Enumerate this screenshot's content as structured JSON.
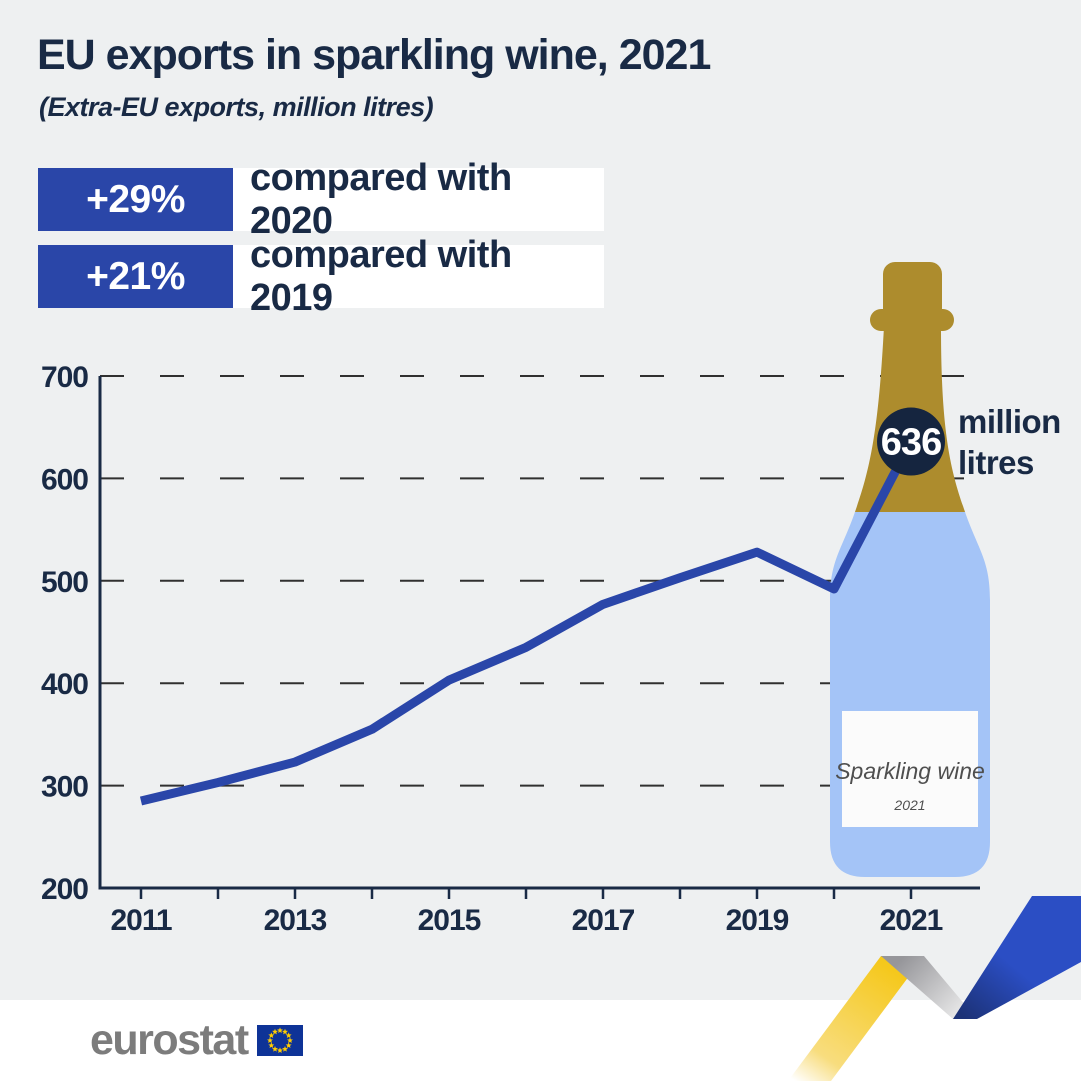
{
  "header": {
    "title": "EU exports in sparkling wine, 2021",
    "subtitle": "(Extra-EU exports, million litres)"
  },
  "badges": [
    {
      "value": "+29%",
      "label": "compared with 2020"
    },
    {
      "value": "+21%",
      "label": "compared with 2019"
    }
  ],
  "callout": {
    "value": "636",
    "unit_lines": [
      "million",
      "litres"
    ]
  },
  "bottle": {
    "label": "Sparkling wine",
    "year": "2021"
  },
  "chart_data": {
    "type": "line",
    "title": "EU exports in sparkling wine, 2021",
    "ylabel": "million litres",
    "x": [
      2011,
      2012,
      2013,
      2014,
      2015,
      2016,
      2017,
      2018,
      2019,
      2020,
      2021
    ],
    "series": [
      {
        "name": "Extra-EU exports of sparkling wine",
        "values": [
          285,
          303,
          323,
          355,
          403,
          435,
          477,
          503,
          528,
          492,
          636
        ]
      }
    ],
    "ylim": [
      200,
      700
    ],
    "yticks": [
      200,
      300,
      400,
      500,
      600,
      700
    ],
    "xtick_labels": [
      2011,
      2013,
      2015,
      2017,
      2019,
      2021
    ],
    "grid": "horizontal dashed"
  },
  "footer": {
    "logo_text": "eurostat"
  },
  "colors": {
    "bg": "#eef0f1",
    "navy": "#192a45",
    "badge_blue": "#2a46a8",
    "line_blue": "#2a46a9",
    "circle_navy": "#15253f",
    "gold": "#ad8c2d",
    "bottle_blue": "#a4c4f7",
    "logo_gray": "#7c7c7c",
    "flag_blue": "#0e3397",
    "star_yellow": "#ffcc00",
    "ribbon_yellow": "#f5c81c",
    "ribbon_blue": "#2b4ec4"
  }
}
